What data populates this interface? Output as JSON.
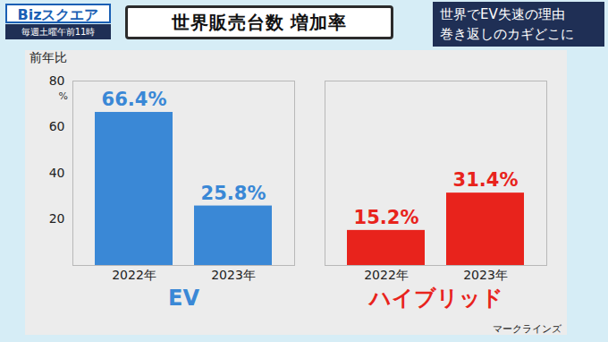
{
  "header": {
    "logo": "Bizスクエア",
    "schedule": "毎週土曜午前11時",
    "topic": [
      "世界でEV失速の理由",
      "巻き返しのカギどこに"
    ]
  },
  "chart_data": {
    "type": "bar",
    "title": "世界販売台数 増加率",
    "ylabel": "前年比",
    "y_unit": "%",
    "categories": [
      "2022年",
      "2023年"
    ],
    "series": [
      {
        "name": "EV",
        "color": "#3a88d6",
        "values": [
          66.4,
          25.8
        ],
        "value_labels": [
          "66.4%",
          "25.8%"
        ]
      },
      {
        "name": "ハイブリッド",
        "color": "#e8231c",
        "values": [
          15.2,
          31.4
        ],
        "value_labels": [
          "15.2%",
          "31.4%"
        ]
      }
    ],
    "ylim": [
      0,
      80
    ],
    "yticks": [
      20,
      40,
      60,
      80
    ],
    "grid": false,
    "data_labels": true,
    "source": "マークラインズ"
  }
}
